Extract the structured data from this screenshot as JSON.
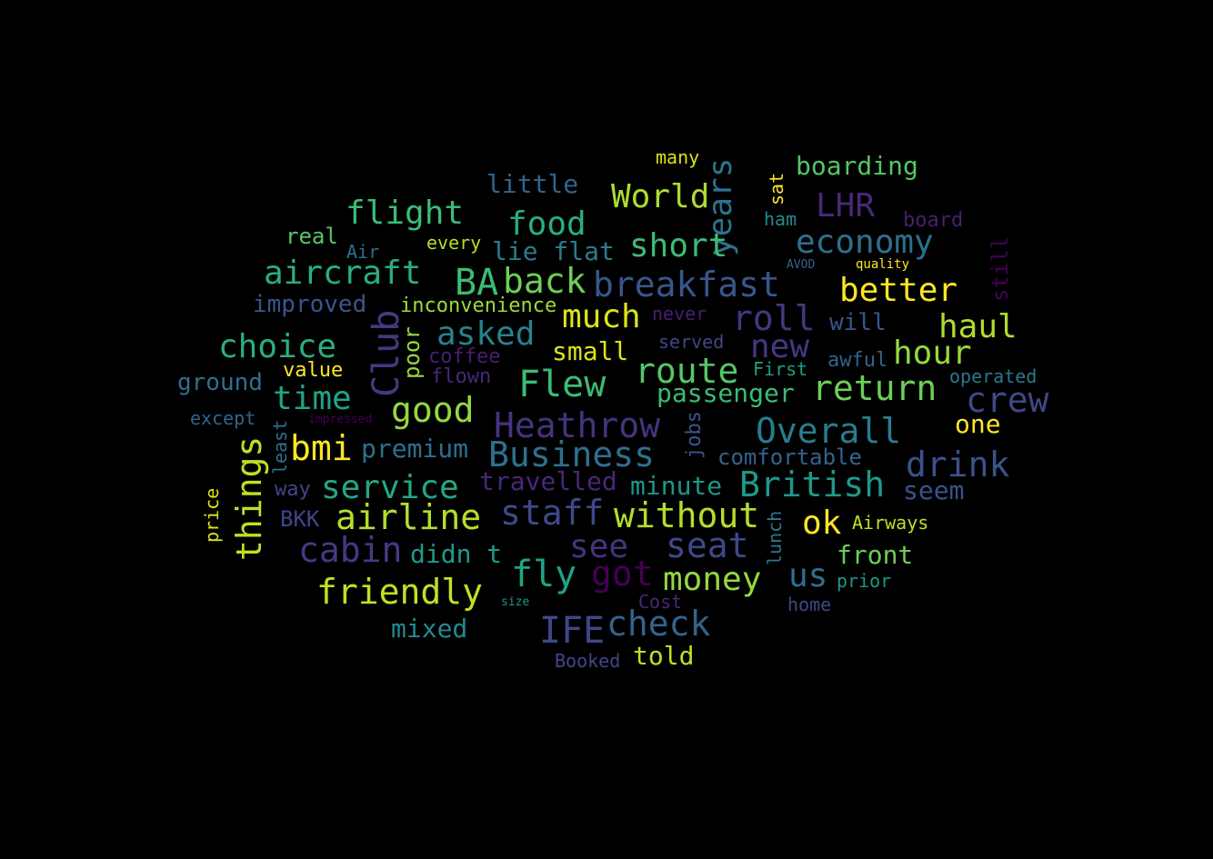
{
  "words": [
    {
      "text": "flight",
      "color": "#3cbb75"
    },
    {
      "text": "food",
      "color": "#29af7f"
    },
    {
      "text": "World",
      "color": "#addc30"
    },
    {
      "text": "years",
      "color": "#2c728e"
    },
    {
      "text": "LHR",
      "color": "#482878"
    },
    {
      "text": "boarding",
      "color": "#55c667"
    },
    {
      "text": "little",
      "color": "#33638d"
    },
    {
      "text": "many",
      "color": "#dde318"
    },
    {
      "text": "sat",
      "color": "#fde725"
    },
    {
      "text": "short",
      "color": "#3cbb75"
    },
    {
      "text": "economy",
      "color": "#2d708e"
    },
    {
      "text": "real",
      "color": "#55c667"
    },
    {
      "text": "every",
      "color": "#b5de2b"
    },
    {
      "text": "lie flat",
      "color": "#287d8e"
    },
    {
      "text": "ham",
      "color": "#238a8d"
    },
    {
      "text": "board",
      "color": "#481f70"
    },
    {
      "text": "still",
      "color": "#440154"
    },
    {
      "text": "Air",
      "color": "#2d708e"
    },
    {
      "text": "AVOD",
      "color": "#33638d"
    },
    {
      "text": "quality",
      "color": "#fde725"
    },
    {
      "text": "aircraft",
      "color": "#29af7f"
    },
    {
      "text": "BA",
      "color": "#3cbb75"
    },
    {
      "text": "back",
      "color": "#6ece58"
    },
    {
      "text": "breakfast",
      "color": "#39568c"
    },
    {
      "text": "better",
      "color": "#fde725"
    },
    {
      "text": "improved",
      "color": "#39568c"
    },
    {
      "text": "inconvenience",
      "color": "#a0da39"
    },
    {
      "text": "Club",
      "color": "#443983"
    },
    {
      "text": "asked",
      "color": "#26828e"
    },
    {
      "text": "much",
      "color": "#dde318"
    },
    {
      "text": "never",
      "color": "#481f70"
    },
    {
      "text": "roll",
      "color": "#453781"
    },
    {
      "text": "will",
      "color": "#39568c"
    },
    {
      "text": "haul",
      "color": "#addc30"
    },
    {
      "text": "choice",
      "color": "#29af7f"
    },
    {
      "text": "poor",
      "color": "#95d840"
    },
    {
      "text": "coffee",
      "color": "#481f70"
    },
    {
      "text": "small",
      "color": "#dde318"
    },
    {
      "text": "served",
      "color": "#3f4788"
    },
    {
      "text": "new",
      "color": "#453781"
    },
    {
      "text": "awful",
      "color": "#33638d"
    },
    {
      "text": "hour",
      "color": "#95d840"
    },
    {
      "text": "value",
      "color": "#fde725"
    },
    {
      "text": "flown",
      "color": "#482878"
    },
    {
      "text": "Flew",
      "color": "#3cbb75"
    },
    {
      "text": "route",
      "color": "#55c667"
    },
    {
      "text": "First",
      "color": "#1f9e89"
    },
    {
      "text": "operated",
      "color": "#2a788e"
    },
    {
      "text": "ground",
      "color": "#2d708e"
    },
    {
      "text": "time",
      "color": "#20a386"
    },
    {
      "text": "passenger",
      "color": "#3cbb75"
    },
    {
      "text": "return",
      "color": "#6ece58"
    },
    {
      "text": "crew",
      "color": "#404688"
    },
    {
      "text": "except",
      "color": "#33638d"
    },
    {
      "text": "least",
      "color": "#2d708e"
    },
    {
      "text": "impressed",
      "color": "#440154"
    },
    {
      "text": "good",
      "color": "#95d840"
    },
    {
      "text": "Heathrow",
      "color": "#46337e"
    },
    {
      "text": "jobs",
      "color": "#39568c"
    },
    {
      "text": "Overall",
      "color": "#287d8e"
    },
    {
      "text": "one",
      "color": "#fde725"
    },
    {
      "text": "things",
      "color": "#c2df23"
    },
    {
      "text": "bmi",
      "color": "#fde725"
    },
    {
      "text": "premium",
      "color": "#2d708e"
    },
    {
      "text": "Business",
      "color": "#2d708e"
    },
    {
      "text": "comfortable",
      "color": "#33638d"
    },
    {
      "text": "drink",
      "color": "#3b528b"
    },
    {
      "text": "price",
      "color": "#dde318"
    },
    {
      "text": "service",
      "color": "#22a884"
    },
    {
      "text": "travelled",
      "color": "#482878"
    },
    {
      "text": "minute",
      "color": "#1f968b"
    },
    {
      "text": "British",
      "color": "#1f988b"
    },
    {
      "text": "seem",
      "color": "#3b528b"
    },
    {
      "text": "way",
      "color": "#3f4788"
    },
    {
      "text": "BKK",
      "color": "#404688"
    },
    {
      "text": "airline",
      "color": "#b5de2b"
    },
    {
      "text": "staff",
      "color": "#3e4989"
    },
    {
      "text": "without",
      "color": "#b5de2b"
    },
    {
      "text": "lunch",
      "color": "#2a788e"
    },
    {
      "text": "ok",
      "color": "#fde725"
    },
    {
      "text": "Airways",
      "color": "#c2df23"
    },
    {
      "text": "cabin",
      "color": "#443983"
    },
    {
      "text": "didn t",
      "color": "#1f9a8a"
    },
    {
      "text": "see",
      "color": "#46337e"
    },
    {
      "text": "seat",
      "color": "#3e4989"
    },
    {
      "text": "front",
      "color": "#6ece58"
    },
    {
      "text": "friendly",
      "color": "#c2df23"
    },
    {
      "text": "fly",
      "color": "#20a386"
    },
    {
      "text": "got",
      "color": "#440154"
    },
    {
      "text": "money",
      "color": "#95d840"
    },
    {
      "text": "us",
      "color": "#2d708e"
    },
    {
      "text": "prior",
      "color": "#1f968b"
    },
    {
      "text": "size",
      "color": "#1f968b"
    },
    {
      "text": "Cost",
      "color": "#482878"
    },
    {
      "text": "home",
      "color": "#3f4788"
    },
    {
      "text": "mixed",
      "color": "#238a8d"
    },
    {
      "text": "IFE",
      "color": "#3f4788"
    },
    {
      "text": "check",
      "color": "#33638d"
    },
    {
      "text": "Booked",
      "color": "#3f4788"
    },
    {
      "text": "told",
      "color": "#c2df23"
    }
  ]
}
